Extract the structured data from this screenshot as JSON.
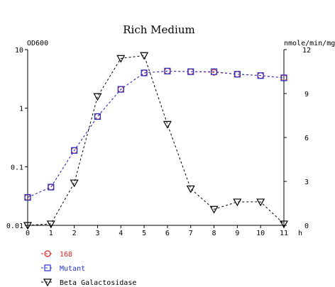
{
  "chart_data": {
    "type": "line",
    "title": "Rich Medium",
    "left_axis_label": "OD600",
    "right_axis_label": "nmole/min/mg",
    "x_unit_label": "h",
    "x": [
      0,
      1,
      2,
      3,
      4,
      5,
      6,
      7,
      8,
      9,
      10,
      11
    ],
    "x_ticks": [
      "0",
      "1",
      "2",
      "3",
      "4",
      "5",
      "6",
      "7",
      "8",
      "9",
      "10",
      "11"
    ],
    "left_scale": "log",
    "left_ylim": [
      0.01,
      10
    ],
    "left_ticks": [
      {
        "value": 10,
        "label": "10"
      },
      {
        "value": 1,
        "label": "1"
      },
      {
        "value": 0.1,
        "label": "0.1"
      },
      {
        "value": 0.01,
        "label": "0.01"
      }
    ],
    "right_ylim": [
      0,
      12
    ],
    "right_ticks": [
      {
        "value": 12,
        "label": "12"
      },
      {
        "value": 9,
        "label": "9"
      },
      {
        "value": 6,
        "label": "6"
      },
      {
        "value": 3,
        "label": "3"
      },
      {
        "value": 0,
        "label": "0"
      }
    ],
    "series": [
      {
        "name": "168",
        "axis": "left",
        "marker": "circle",
        "color": "#dd2222",
        "values": [
          0.03,
          0.045,
          0.19,
          0.72,
          2.1,
          4.0,
          4.3,
          4.2,
          4.1,
          3.8,
          3.6,
          3.3
        ]
      },
      {
        "name": "Mutant",
        "axis": "left",
        "marker": "square",
        "color": "#2233cc",
        "values": [
          0.03,
          0.045,
          0.19,
          0.72,
          2.1,
          4.0,
          4.3,
          4.2,
          4.2,
          3.8,
          3.6,
          3.3
        ]
      },
      {
        "name": "Beta Galactosidase",
        "axis": "right",
        "marker": "triangle-down",
        "color": "#000000",
        "values": [
          0.0,
          0.1,
          2.9,
          8.8,
          11.4,
          11.6,
          6.9,
          2.5,
          1.1,
          1.6,
          1.6,
          0.1
        ]
      }
    ],
    "legend_position": "bottom-left",
    "grid": false
  }
}
